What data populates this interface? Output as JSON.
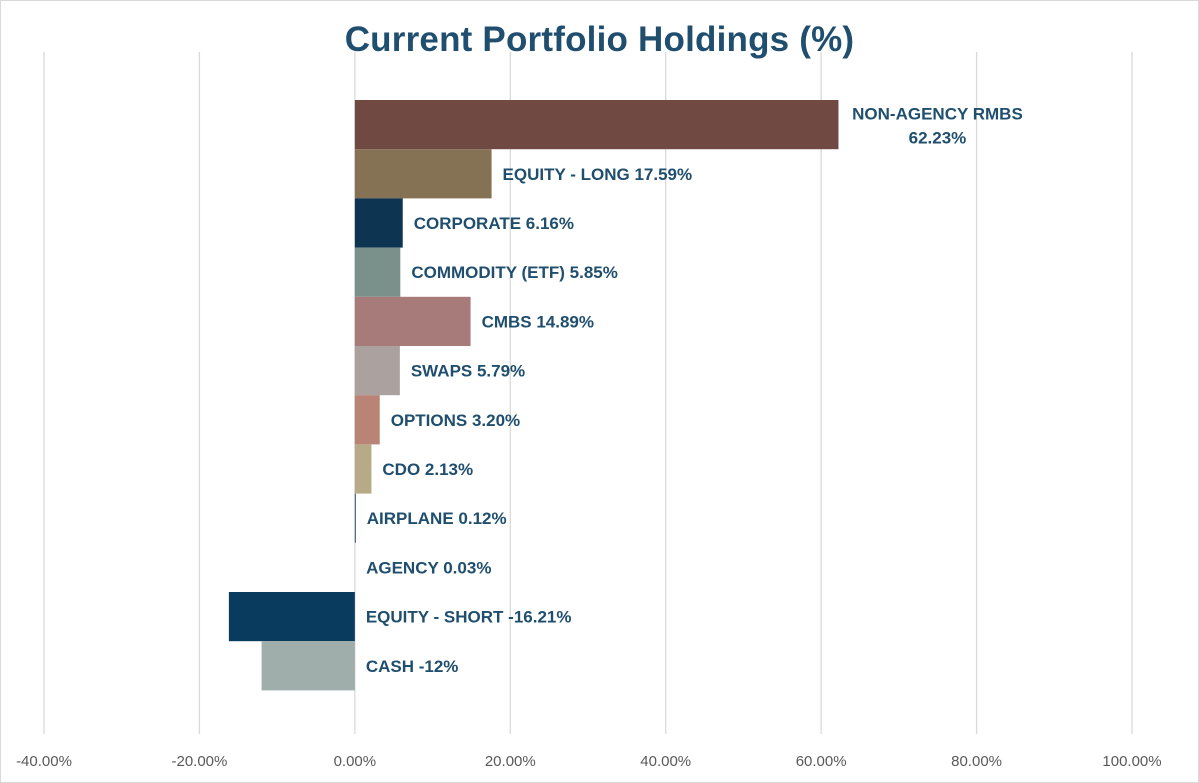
{
  "chart_data": {
    "type": "bar",
    "orientation": "horizontal",
    "title": "Current Portfolio Holdings (%)",
    "xlabel": "",
    "ylabel": "",
    "xlim": [
      -40,
      100
    ],
    "x_ticks": [
      -40,
      -20,
      0,
      20,
      40,
      60,
      80,
      100
    ],
    "x_tick_labels": [
      "-40.00%",
      "-20.00%",
      "0.00%",
      "20.00%",
      "40.00%",
      "60.00%",
      "80.00%",
      "100.00%"
    ],
    "grid": "vertical",
    "legend": "none",
    "categories": [
      "NON-AGENCY RMBS",
      "EQUITY - LONG",
      "CORPORATE",
      "COMMODITY (ETF)",
      "CMBS",
      "SWAPS",
      "OPTIONS",
      "CDO",
      "AIRPLANE",
      "AGENCY",
      "EQUITY - SHORT",
      "CASH"
    ],
    "values": [
      62.23,
      17.59,
      6.16,
      5.85,
      14.89,
      5.79,
      3.2,
      2.13,
      0.12,
      0.03,
      -16.21,
      -12
    ],
    "data_labels": [
      [
        "NON-AGENCY RMBS",
        "62.23%"
      ],
      [
        "EQUITY - LONG 17.59%"
      ],
      [
        "CORPORATE 6.16%"
      ],
      [
        "COMMODITY (ETF) 5.85%"
      ],
      [
        "CMBS 14.89%"
      ],
      [
        "SWAPS 5.79%"
      ],
      [
        "OPTIONS 3.20%"
      ],
      [
        "CDO 2.13%"
      ],
      [
        "AIRPLANE 0.12%"
      ],
      [
        "AGENCY 0.03%"
      ],
      [
        "EQUITY - SHORT -16.21%"
      ],
      [
        "CASH -12%"
      ]
    ],
    "colors": [
      "#704a42",
      "#857153",
      "#0d3552",
      "#7a918b",
      "#a67b79",
      "#aba19e",
      "#b98476",
      "#b7aa87",
      "#1f4e6e",
      "#d8d8d8",
      "#093b5e",
      "#9fadab"
    ]
  }
}
